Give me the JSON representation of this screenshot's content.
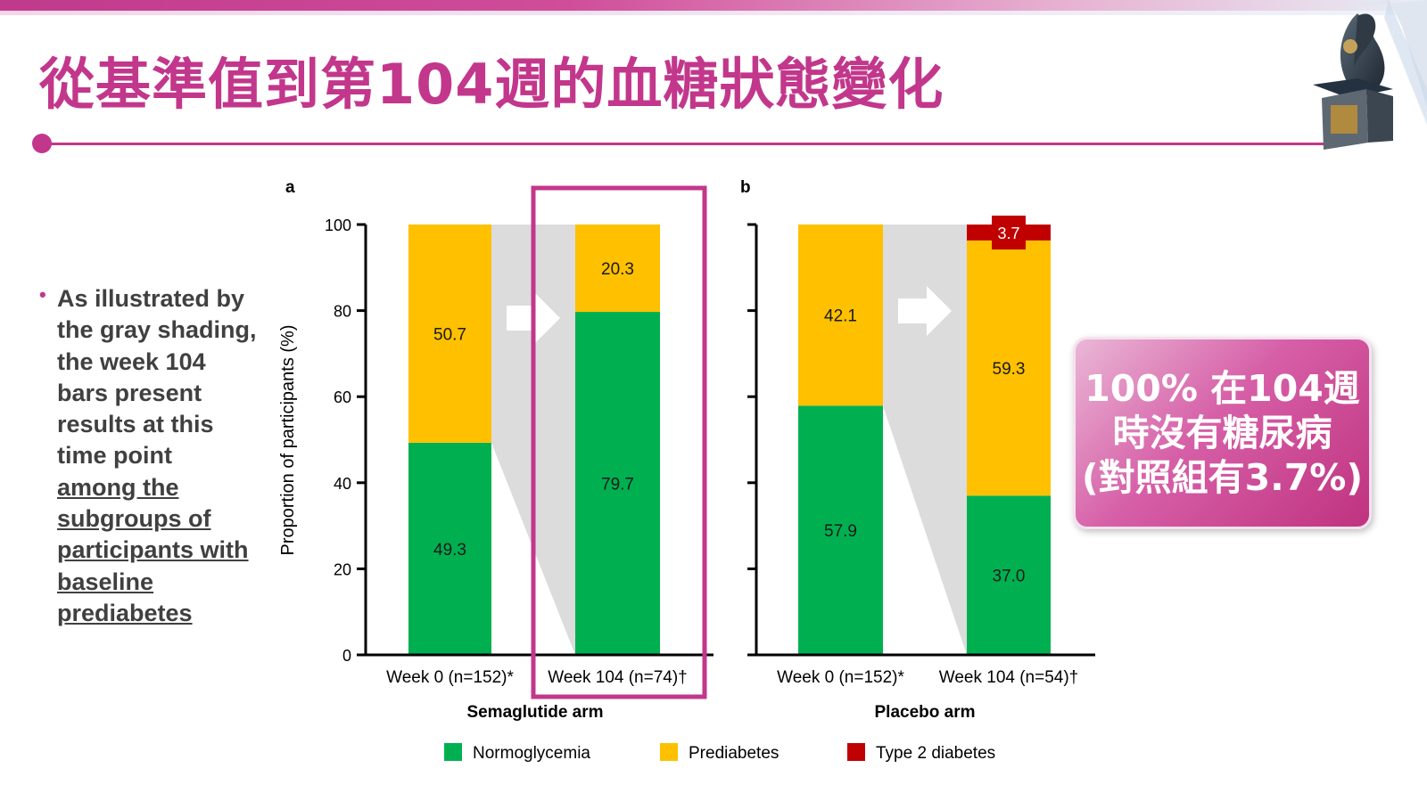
{
  "slide": {
    "title": "從基準值到第104週的血糖狀態變化",
    "bullet": {
      "plain": "As illustrated by the gray shading, the week 104 bars present results at this time point",
      "underlined": "among the subgroups of participants with baseline prediabetes"
    },
    "callout": {
      "line1": "100% 在104週",
      "line2": "時沒有糖尿病",
      "line3": "(對照組有3.7%)"
    }
  },
  "chart_data": [
    {
      "type": "bar",
      "stacked": true,
      "panel_label": "a",
      "title": "Semaglutide arm",
      "ylabel": "Proportion of participants (%)",
      "ylim": [
        0,
        100
      ],
      "yticks": [
        0,
        20,
        40,
        60,
        80,
        100
      ],
      "categories": [
        "Week 0 (n=152)*",
        "Week 104 (n=74)†"
      ],
      "series": [
        {
          "name": "Normoglycemia",
          "values": [
            49.3,
            79.7
          ]
        },
        {
          "name": "Prediabetes",
          "values": [
            50.7,
            20.3
          ]
        },
        {
          "name": "Type 2 diabetes",
          "values": [
            0,
            0
          ]
        }
      ],
      "highlighted_category": "Week 104 (n=74)†"
    },
    {
      "type": "bar",
      "stacked": true,
      "panel_label": "b",
      "title": "Placebo arm",
      "ylim": [
        0,
        100
      ],
      "categories": [
        "Week 0 (n=152)*",
        "Week 104 (n=54)†"
      ],
      "series": [
        {
          "name": "Normoglycemia",
          "values": [
            57.9,
            37.0
          ]
        },
        {
          "name": "Prediabetes",
          "values": [
            42.1,
            59.3
          ]
        },
        {
          "name": "Type 2 diabetes",
          "values": [
            0,
            3.7
          ]
        }
      ]
    }
  ],
  "legend": [
    {
      "name": "Normoglycemia",
      "color": "#00b050"
    },
    {
      "name": "Prediabetes",
      "color": "#ffc000"
    },
    {
      "name": "Type 2 diabetes",
      "color": "#c00000"
    }
  ],
  "colors": {
    "accent": "#c2378b",
    "normoglycemia": "#00b050",
    "prediabetes": "#ffc000",
    "type2": "#c00000",
    "shading": "#dcdcdc"
  }
}
